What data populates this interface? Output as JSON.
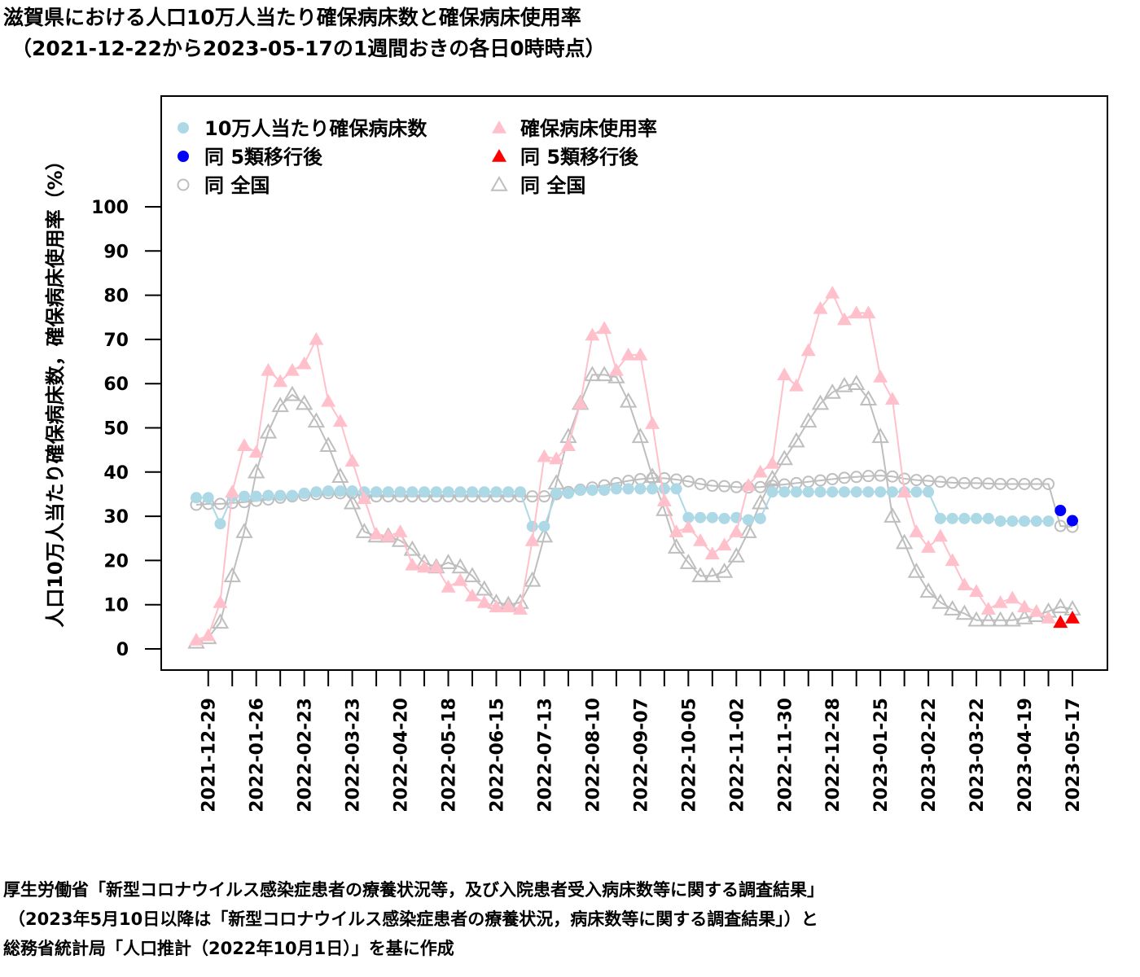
{
  "title": {
    "line1": "滋賀県における人口10万人当たり確保病床数と確保病床使用率",
    "line2": "（2021-12-22から2023-05-17の1週間おきの各日0時時点）"
  },
  "notes": {
    "line1": "厚生労働省「新型コロナウイルス感染症患者の療養状況等，及び入院患者受入病床数等に関する調査結果」",
    "line2": "（2023年5月10日以降は「新型コロナウイルス感染症患者の療養状況，病床数等に関する調査結果」）と",
    "line3": "総務省統計局「人口推計（2022年10月1日）」を基に作成"
  },
  "chart_data": {
    "type": "line",
    "title": "滋賀県における人口10万人当たり確保病床数と確保病床使用率",
    "subtitle": "（2021-12-22から2023-05-17の1週間おきの各日0時時点）",
    "xlabel": "",
    "ylabel": "人口10万人当たり確保病床数，確保病床使用率（%）",
    "ylim": [
      0,
      100
    ],
    "yticks": [
      "0",
      "10",
      "20",
      "30",
      "40",
      "50",
      "60",
      "70",
      "80",
      "90",
      "100"
    ],
    "x_start": "2021-12-22",
    "x_interval_weeks": 1,
    "n_points": 74,
    "xtick_labels": [
      "2021-12-29",
      "2022-01-26",
      "2022-02-23",
      "2022-03-23",
      "2022-04-20",
      "2022-05-18",
      "2022-06-15",
      "2022-07-13",
      "2022-08-10",
      "2022-09-07",
      "2022-10-05",
      "2022-11-02",
      "2022-11-30",
      "2022-12-28",
      "2023-01-25",
      "2023-02-22",
      "2023-03-22",
      "2023-04-19",
      "2023-05-17"
    ],
    "grid": false,
    "legend_position": "top-left",
    "legend": [
      {
        "label": "10万人当たり確保病床数",
        "marker": "filled-circle",
        "color": "#ADD8E6"
      },
      {
        "label": "確保病床使用率",
        "marker": "filled-triangle",
        "color": "#FFC0CB"
      },
      {
        "label": "同 5類移行後",
        "marker": "filled-circle",
        "color": "#0000FF"
      },
      {
        "label": "同 5類移行後",
        "marker": "filled-triangle",
        "color": "#FF0000"
      },
      {
        "label": "同 全国",
        "marker": "open-circle",
        "color": "#BEBEBE"
      },
      {
        "label": "同 全国",
        "marker": "open-triangle",
        "color": "#BEBEBE"
      }
    ],
    "series": [
      {
        "name": "10万人当たり確保病床数",
        "marker": "filled-circle",
        "color": "#ADD8E6",
        "start_index": 0,
        "values": [
          34.2,
          34.2,
          28.3,
          34.5,
          34.5,
          34.5,
          34.7,
          34.7,
          34.7,
          35.2,
          35.5,
          35.7,
          35.7,
          35.7,
          35.5,
          35.5,
          35.5,
          35.5,
          35.5,
          35.5,
          35.5,
          35.5,
          35.5,
          35.5,
          35.5,
          35.5,
          35.5,
          35.5,
          27.7,
          27.7,
          35.2,
          35.2,
          35.9,
          35.9,
          35.9,
          36.2,
          36.2,
          36.2,
          36.2,
          36.2,
          36.2,
          29.7,
          29.7,
          29.7,
          29.5,
          29.7,
          29.2,
          29.5,
          35.5,
          35.5,
          35.5,
          35.5,
          35.5,
          35.5,
          35.5,
          35.5,
          35.5,
          35.5,
          35.5,
          35.5,
          35.5,
          35.5,
          29.5,
          29.5,
          29.5,
          29.5,
          29.5,
          28.9,
          28.9,
          28.9,
          28.9,
          28.9
        ]
      },
      {
        "name": "同 5類移行後 (10万人当たり確保病床数)",
        "marker": "filled-circle",
        "color": "#0000FF",
        "start_index": 72,
        "values": [
          31.3,
          29.0
        ]
      },
      {
        "name": "同 全国 (10万人当たり確保病床数)",
        "marker": "open-circle",
        "color": "#BEBEBE",
        "start_index": 0,
        "values": [
          32.6,
          32.8,
          32.8,
          33.0,
          33.2,
          33.5,
          33.8,
          34.2,
          34.5,
          34.7,
          35.0,
          35.2,
          35.2,
          35.2,
          34.5,
          34.5,
          34.5,
          34.5,
          34.5,
          34.5,
          34.5,
          34.5,
          34.5,
          34.5,
          34.5,
          34.5,
          34.5,
          34.5,
          34.5,
          34.5,
          35.0,
          35.5,
          36.0,
          36.5,
          37.0,
          37.5,
          38.0,
          38.4,
          38.6,
          38.6,
          38.3,
          37.9,
          37.3,
          36.9,
          36.8,
          36.6,
          36.5,
          36.6,
          36.9,
          37.2,
          37.5,
          37.8,
          38.1,
          38.4,
          38.7,
          38.9,
          39.1,
          39.2,
          39.0,
          38.5,
          38.2,
          38.0,
          37.8,
          37.6,
          37.5,
          37.5,
          37.4,
          37.3,
          37.3,
          37.3,
          37.3,
          37.3,
          27.8,
          27.6
        ]
      },
      {
        "name": "確保病床使用率",
        "marker": "filled-triangle",
        "color": "#FFC0CB",
        "start_index": 0,
        "values": [
          2,
          3,
          10.5,
          35.5,
          46,
          44.5,
          63,
          60.5,
          63,
          64.5,
          70,
          56,
          51.5,
          42.5,
          34,
          26,
          25.5,
          26.5,
          19,
          18.5,
          18.5,
          14,
          15.5,
          12,
          10.5,
          9.5,
          9.5,
          9,
          24.5,
          43.5,
          43,
          46,
          55.5,
          71,
          72.5,
          63,
          66.5,
          66.5,
          51,
          33.5,
          26.5,
          27.5,
          24.5,
          21.5,
          23.5,
          26.5,
          37,
          40,
          42,
          62,
          59.5,
          67.5,
          77,
          80.5,
          74.5,
          76,
          76,
          61.5,
          56.5,
          35.5,
          26.5,
          23,
          25.5,
          20,
          14.5,
          13,
          9,
          10.5,
          11.5,
          9.5,
          8.5,
          7
        ]
      },
      {
        "name": "同 5類移行後 (確保病床使用率)",
        "marker": "filled-triangle",
        "color": "#FF0000",
        "start_index": 72,
        "values": [
          6,
          7
        ]
      },
      {
        "name": "同 全国 (確保病床使用率)",
        "marker": "open-triangle",
        "color": "#BEBEBE",
        "start_index": 0,
        "values": [
          1.5,
          2.5,
          6,
          16.5,
          26.5,
          40,
          49,
          55,
          57.5,
          55.5,
          51.5,
          46,
          39,
          33,
          26.5,
          25.5,
          25.5,
          24.5,
          22.5,
          19.5,
          18.5,
          19.5,
          18.5,
          16.5,
          13.5,
          10.5,
          10,
          10.5,
          15.5,
          25.5,
          37.5,
          48,
          55.5,
          62,
          62,
          61.5,
          56,
          48,
          39,
          31.5,
          23,
          19.5,
          16.5,
          16.5,
          17.5,
          21,
          26.5,
          33,
          38.5,
          43,
          47,
          51.5,
          55.5,
          58,
          59.5,
          60,
          56.5,
          48,
          30,
          24,
          17.5,
          13,
          10.5,
          9,
          8,
          6.5,
          6.5,
          6.5,
          6.5,
          7,
          7.5,
          8.5,
          9.5,
          9
        ]
      }
    ]
  }
}
